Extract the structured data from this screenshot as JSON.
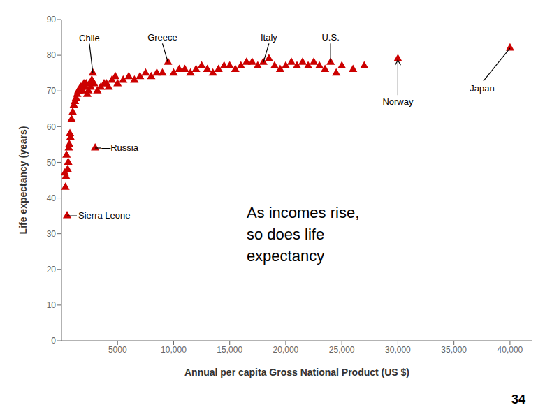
{
  "chart_data": {
    "type": "scatter",
    "x_label": "Annual per capita Gross National Product (US $)",
    "y_label": "Life expectancy (years)",
    "xlim": [
      0,
      42000
    ],
    "ylim": [
      0,
      90
    ],
    "xticks": [
      5000,
      {
        "value": 10000,
        "label": "10,000"
      },
      {
        "value": 15000,
        "label": "15,000"
      },
      {
        "value": 20000,
        "label": "20,000"
      },
      {
        "value": 25000,
        "label": "25,000"
      },
      {
        "value": 30000,
        "label": "30,000"
      },
      {
        "value": 35000,
        "label": "35,000"
      },
      {
        "value": 40000,
        "label": "40,000"
      }
    ],
    "yticks": [
      0,
      10,
      20,
      30,
      40,
      50,
      60,
      70,
      80,
      90
    ],
    "grid": false,
    "color": "#cc0000",
    "marker": "triangle",
    "x": [
      300,
      350,
      400,
      450,
      500,
      550,
      600,
      650,
      700,
      750,
      800,
      900,
      1000,
      1100,
      1200,
      1300,
      1400,
      1500,
      1600,
      1700,
      1800,
      1900,
      2000,
      2100,
      2200,
      2300,
      2400,
      2500,
      2600,
      2700,
      2800,
      2900,
      3000,
      3200,
      3500,
      3800,
      4000,
      4200,
      4500,
      4800,
      5000,
      5500,
      6000,
      6500,
      7000,
      7500,
      8000,
      8500,
      9000,
      9500,
      10000,
      10500,
      11000,
      11500,
      12000,
      12500,
      13000,
      13500,
      14000,
      14500,
      15000,
      15500,
      16000,
      16500,
      17000,
      17500,
      18000,
      18500,
      19000,
      19500,
      20000,
      20500,
      21000,
      21500,
      22000,
      22500,
      23000,
      23500,
      24000,
      24500,
      25000,
      26000,
      27000,
      30000,
      40000
    ],
    "values": [
      47,
      43,
      46,
      52,
      35,
      48,
      50,
      54,
      55,
      58,
      57,
      62,
      64,
      66,
      67,
      68,
      69,
      70,
      70,
      71,
      71,
      70,
      72,
      71,
      72,
      69,
      70,
      72,
      71,
      73,
      75,
      72,
      54,
      70,
      71,
      72,
      72,
      71,
      73,
      74,
      72,
      73,
      74,
      73,
      74,
      75,
      74,
      75,
      75,
      78,
      75,
      76,
      76,
      75,
      76,
      77,
      76,
      75,
      76,
      77,
      77,
      76,
      77,
      78,
      78,
      77,
      78,
      79,
      77,
      76,
      77,
      78,
      77,
      78,
      77,
      78,
      77,
      76,
      78,
      75,
      77,
      76,
      77,
      79,
      82
    ],
    "annotations": [
      {
        "text": "Sierra Leone",
        "x": 500,
        "y": 35
      },
      {
        "text": "—Russia",
        "x": 3000,
        "y": 54
      },
      {
        "text": "Chile",
        "x": 2800,
        "y": 75
      },
      {
        "text": "Greece",
        "x": 9500,
        "y": 78
      },
      {
        "text": "Italy",
        "x": 18000,
        "y": 78
      },
      {
        "text": "U.S.",
        "x": 24000,
        "y": 78
      },
      {
        "text": "Norway",
        "x": 30000,
        "y": 79
      },
      {
        "text": "Japan",
        "x": 40000,
        "y": 82
      }
    ],
    "note": "As incomes rise,\nso does life\nexpectancy",
    "slide_number": "34"
  }
}
